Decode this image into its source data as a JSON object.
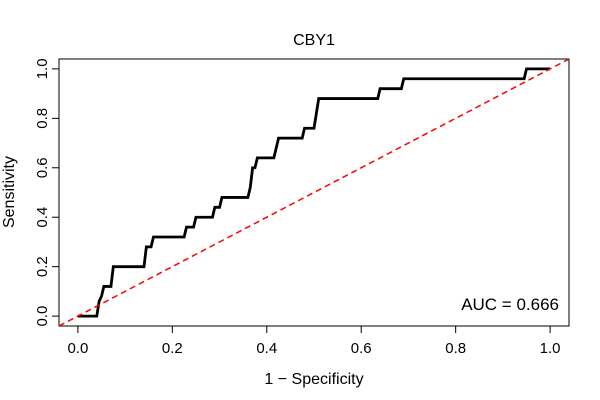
{
  "chart_data": {
    "type": "line",
    "title": "CBY1",
    "xlabel": "1 − Specificity",
    "ylabel": "Sensitivity",
    "xlim": [
      -0.04,
      1.04
    ],
    "ylim": [
      -0.04,
      1.04
    ],
    "x_ticks": [
      "0.0",
      "0.2",
      "0.4",
      "0.6",
      "0.8",
      "1.0"
    ],
    "y_ticks": [
      "0.0",
      "0.2",
      "0.4",
      "0.6",
      "0.8",
      "1.0"
    ],
    "grid": false,
    "annotation": "AUC = 0.666",
    "series": [
      {
        "color": "#000000",
        "style": "solid",
        "points": [
          [
            0.0,
            0.0
          ],
          [
            0.04,
            0.0
          ],
          [
            0.045,
            0.06
          ],
          [
            0.05,
            0.08
          ],
          [
            0.055,
            0.12
          ],
          [
            0.07,
            0.12
          ],
          [
            0.075,
            0.2
          ],
          [
            0.14,
            0.2
          ],
          [
            0.145,
            0.28
          ],
          [
            0.155,
            0.28
          ],
          [
            0.16,
            0.32
          ],
          [
            0.225,
            0.32
          ],
          [
            0.23,
            0.36
          ],
          [
            0.245,
            0.36
          ],
          [
            0.25,
            0.4
          ],
          [
            0.285,
            0.4
          ],
          [
            0.29,
            0.44
          ],
          [
            0.3,
            0.44
          ],
          [
            0.305,
            0.48
          ],
          [
            0.36,
            0.48
          ],
          [
            0.365,
            0.52
          ],
          [
            0.37,
            0.6
          ],
          [
            0.375,
            0.6
          ],
          [
            0.38,
            0.64
          ],
          [
            0.415,
            0.64
          ],
          [
            0.42,
            0.68
          ],
          [
            0.425,
            0.72
          ],
          [
            0.475,
            0.72
          ],
          [
            0.48,
            0.76
          ],
          [
            0.5,
            0.76
          ],
          [
            0.505,
            0.82
          ],
          [
            0.51,
            0.88
          ],
          [
            0.635,
            0.88
          ],
          [
            0.64,
            0.92
          ],
          [
            0.685,
            0.92
          ],
          [
            0.69,
            0.96
          ],
          [
            0.945,
            0.96
          ],
          [
            0.95,
            1.0
          ],
          [
            1.0,
            1.0
          ]
        ]
      },
      {
        "color": "#ff0000",
        "style": "dashed",
        "points": [
          [
            -0.04,
            -0.04
          ],
          [
            1.04,
            1.04
          ]
        ]
      }
    ]
  }
}
